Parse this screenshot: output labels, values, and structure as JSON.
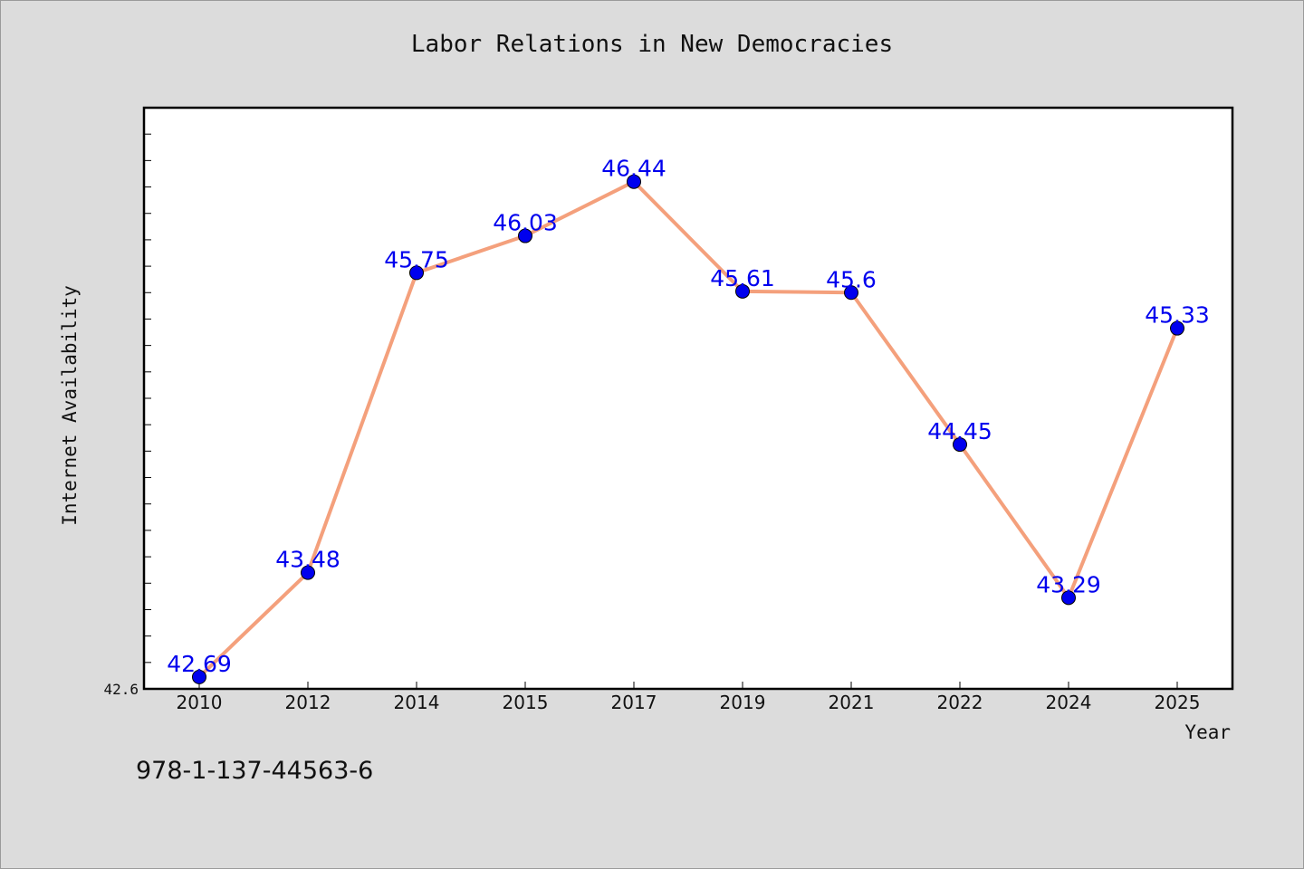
{
  "page": {
    "footer_text": "978-1-137-44563-6",
    "background_color": "#dcdcdc"
  },
  "chart_data": {
    "type": "line",
    "title": "Labor Relations in New Democracies",
    "xlabel": "Year",
    "ylabel": "Internet Availability",
    "categories": [
      "2010",
      "2012",
      "2014",
      "2015",
      "2017",
      "2019",
      "2021",
      "2022",
      "2024",
      "2025"
    ],
    "series": [
      {
        "values": [
          42.69,
          43.48,
          45.75,
          46.03,
          46.44,
          45.61,
          45.6,
          44.45,
          43.29,
          45.33
        ],
        "data_labels": [
          "42.69",
          "43.48",
          "45.75",
          "46.03",
          "46.44",
          "45.61",
          "45.6",
          "44.45",
          "43.29",
          "45.33"
        ],
        "line_color": "#f4a07c",
        "marker_color": "#0000ee"
      }
    ],
    "yticks": [
      42.6
    ],
    "ytick_labels": [
      "42.6"
    ],
    "ylim": [
      42.6,
      47.0
    ],
    "grid": false,
    "legend": "none"
  }
}
